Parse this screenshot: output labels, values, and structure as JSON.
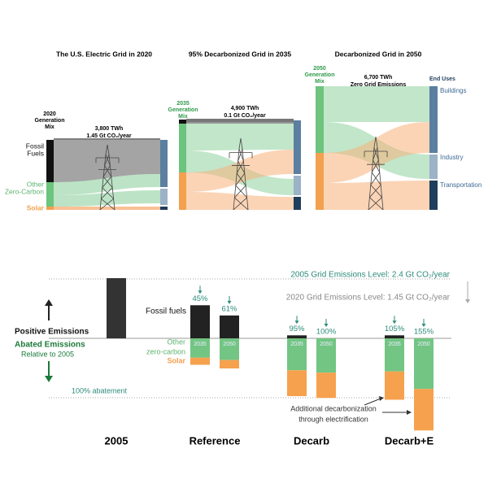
{
  "top": {
    "panels": [
      {
        "title": "The U.S. Electric Grid in 2020",
        "mix": [
          "2020",
          "Generation",
          "Mix"
        ],
        "stats": [
          "3,800 TWh",
          "1.45 Gt CO₂/year"
        ],
        "sources": [
          {
            "lines": [
              "Fossil",
              "Fuels"
            ]
          },
          {
            "lines": [
              "Other",
              "Zero-Carbon"
            ]
          },
          {
            "lines": [
              "Solar"
            ]
          }
        ]
      },
      {
        "title": "95% Decarbonized Grid in 2035",
        "mix": [
          "2035",
          "Generation",
          "Mix"
        ],
        "stats": [
          "4,900 TWh",
          "0.1 Gt CO₂/year"
        ]
      },
      {
        "title": "Decarbonized Grid in 2050",
        "mix": [
          "2050",
          "Generation",
          "Mix"
        ],
        "stats": [
          "6,700 TWh",
          "Zero Grid Emissions"
        ],
        "end_uses_title": "End Uses",
        "end_uses": [
          "Buildings",
          "Industry",
          "Transportation"
        ]
      }
    ]
  },
  "bottom": {
    "levels": [
      "2005 Grid Emissions Level: 2.4 Gt CO₂/year",
      "2020 Grid Emissions Level: 1.45 Gt CO₂/year"
    ],
    "positive_label": "Positive Emissions",
    "abated_label": [
      "Abated Emissions",
      "Relative to 2005"
    ],
    "abatement_label": "100% abatement",
    "legend": {
      "fossil": "Fossil fuels",
      "other": [
        "Other",
        "zero-carbon"
      ],
      "solar": "Solar"
    },
    "note": [
      "Additional decarbonization",
      "through electrification"
    ],
    "baseline": {
      "label": "2005",
      "fossil": 100
    },
    "groups": [
      {
        "label": "Reference",
        "bars": [
          {
            "year": "2035",
            "abatement": "45%",
            "fossil": 55,
            "other": 32,
            "solar": 12
          },
          {
            "year": "2050",
            "abatement": "61%",
            "fossil": 38,
            "other": 36,
            "solar": 14
          }
        ]
      },
      {
        "label": "Decarb",
        "bars": [
          {
            "year": "2035",
            "abatement": "95%",
            "fossil": 5,
            "other": 53,
            "solar": 43
          },
          {
            "year": "2050",
            "abatement": "100%",
            "fossil": 0,
            "other": 57,
            "solar": 42
          }
        ]
      },
      {
        "label": "Decarb+E",
        "bars": [
          {
            "year": "2035",
            "abatement": "105%",
            "fossil": 5,
            "other": 55,
            "solar": 47
          },
          {
            "year": "2050",
            "abatement": "155%",
            "fossil": 0,
            "other": 84,
            "solar": 69
          }
        ]
      }
    ]
  }
}
